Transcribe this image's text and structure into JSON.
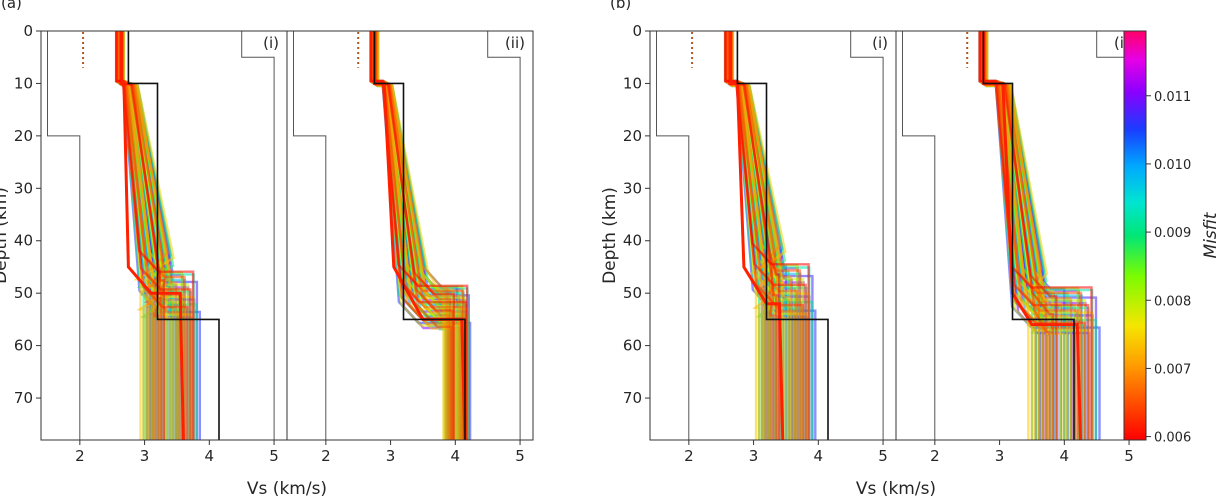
{
  "chart_data": {
    "type": "line",
    "xlabel": "Vs (km/s)",
    "ylabel": "Depth (km)",
    "xlim": [
      1.4,
      5.2
    ],
    "ylim": [
      78,
      0
    ],
    "xticks": [
      2,
      3,
      4,
      5
    ],
    "yticks": [
      0,
      10,
      20,
      30,
      40,
      50,
      60,
      70
    ],
    "colorbar": {
      "label": "Misfit",
      "range": [
        0.00595,
        0.01195
      ],
      "ticks": [
        "0.006",
        "0.007",
        "0.008",
        "0.009",
        "0.010",
        "0.011"
      ],
      "tick_values": [
        0.006,
        0.007,
        0.008,
        0.009,
        0.01,
        0.011
      ]
    },
    "panels": [
      {
        "label": "(a)",
        "subpanels": [
          {
            "tag": "(i)",
            "prior_min": {
              "depth": [
                0,
                20,
                20,
                78
              ],
              "vs": [
                1.5,
                1.5,
                2.0,
                2.0
              ]
            },
            "prior_max": {
              "depth": [
                0,
                5,
                5,
                78
              ],
              "vs": [
                4.5,
                4.5,
                5.0,
                5.0
              ]
            },
            "reference": {
              "depth": [
                0,
                10,
                10,
                55,
                55,
                78
              ],
              "vs": [
                2.75,
                2.75,
                3.2,
                3.2,
                4.15,
                4.15
              ]
            },
            "dotted_marker": {
              "depth": [
                0,
                7
              ],
              "vs": 2.05
            },
            "ensemble": {
              "best_model": {
                "depth": [
                  0,
                  10,
                  10,
                  45,
                  50,
                  50,
                  78
                ],
                "vs": [
                  2.65,
                  2.65,
                  2.68,
                  2.75,
                  3.1,
                  3.55,
                  3.6
                ]
              },
              "upper_depth_spread": [
                -2,
                0
              ],
              "lower_layer_vs_range": [
                2.9,
                3.9
              ],
              "mid_layer_vs_range": [
                2.63,
                3.3
              ],
              "transition_depth_range": [
                42,
                55
              ]
            }
          },
          {
            "tag": "(ii)",
            "prior_min": {
              "depth": [
                0,
                20,
                20,
                78
              ],
              "vs": [
                1.5,
                1.5,
                2.0,
                2.0
              ]
            },
            "prior_max": {
              "depth": [
                0,
                5,
                5,
                78
              ],
              "vs": [
                4.5,
                4.5,
                5.0,
                5.0
              ]
            },
            "reference": {
              "depth": [
                0,
                10,
                10,
                55,
                55,
                78
              ],
              "vs": [
                2.75,
                2.75,
                3.2,
                3.2,
                4.15,
                4.15
              ]
            },
            "dotted_marker": {
              "depth": [
                0,
                7
              ],
              "vs": 2.5
            },
            "ensemble": {
              "best_model": {
                "depth": [
                  0,
                  10,
                  10,
                  45,
                  55,
                  55,
                  78
                ],
                "vs": [
                  2.75,
                  2.75,
                  2.9,
                  3.05,
                  3.5,
                  4.1,
                  4.15
                ]
              },
              "lower_layer_vs_range": [
                3.8,
                4.25
              ],
              "mid_layer_vs_range": [
                2.85,
                3.3
              ],
              "transition_depth_range": [
                45,
                57
              ]
            }
          }
        ]
      },
      {
        "label": "(b)",
        "subpanels": [
          {
            "tag": "(i)",
            "prior_min": {
              "depth": [
                0,
                20,
                20,
                78
              ],
              "vs": [
                1.5,
                1.5,
                2.0,
                2.0
              ]
            },
            "prior_max": {
              "depth": [
                0,
                5,
                5,
                78
              ],
              "vs": [
                4.5,
                4.5,
                5.0,
                5.0
              ]
            },
            "reference": {
              "depth": [
                0,
                10,
                10,
                55,
                55,
                78
              ],
              "vs": [
                2.75,
                2.75,
                3.2,
                3.2,
                4.15,
                4.15
              ]
            },
            "dotted_marker": {
              "depth": [
                0,
                7
              ],
              "vs": 2.05
            },
            "ensemble": {
              "best_model": {
                "depth": [
                  0,
                  10,
                  10,
                  45,
                  52,
                  52,
                  78
                ],
                "vs": [
                  2.65,
                  2.65,
                  2.75,
                  2.85,
                  3.2,
                  3.4,
                  3.45
                ]
              },
              "lower_layer_vs_range": [
                3.0,
                4.0
              ],
              "mid_layer_vs_range": [
                2.7,
                3.3
              ],
              "transition_depth_range": [
                40,
                55
              ]
            }
          },
          {
            "tag": "(ii)",
            "prior_min": {
              "depth": [
                0,
                20,
                20,
                78
              ],
              "vs": [
                1.5,
                1.5,
                2.0,
                2.0
              ]
            },
            "prior_max": {
              "depth": [
                0,
                5,
                5,
                78
              ],
              "vs": [
                4.5,
                4.5,
                5.0,
                5.0
              ]
            },
            "reference": {
              "depth": [
                0,
                10,
                10,
                55,
                55,
                78
              ],
              "vs": [
                2.75,
                2.75,
                3.2,
                3.2,
                4.15,
                4.15
              ]
            },
            "dotted_marker": {
              "depth": [
                0,
                7
              ],
              "vs": 2.5
            },
            "ensemble": {
              "best_model": {
                "depth": [
                  0,
                  10,
                  10,
                  50,
                  56,
                  56,
                  78
                ],
                "vs": [
                  2.75,
                  2.75,
                  3.05,
                  3.2,
                  3.5,
                  4.2,
                  4.25
                ]
              },
              "lower_layer_vs_range": [
                3.4,
                4.6
              ],
              "mid_layer_vs_range": [
                2.9,
                3.6
              ],
              "transition_depth_range": [
                45,
                58
              ]
            }
          }
        ]
      }
    ]
  }
}
